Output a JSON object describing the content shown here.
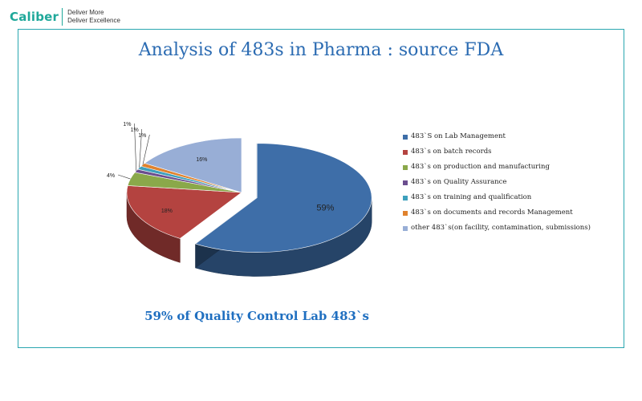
{
  "header": {
    "brand": "Caliber",
    "tagline_1": "Deliver More",
    "tagline_2": "Deliver Excellence"
  },
  "slide": {
    "title": "Analysis of 483s  in Pharma : source FDA",
    "subtitle": "59% of Quality Control Lab 483`s"
  },
  "colors": {
    "brand": "#1fa89a",
    "frame": "#2aa6b0",
    "title": "#2b6bb2"
  },
  "chart_data": {
    "type": "pie",
    "title": "",
    "series": [
      {
        "name": "483`S on Lab Management",
        "value": 59,
        "label": "59%",
        "color": "#3e6ea8"
      },
      {
        "name": "483`s on batch records",
        "value": 18,
        "label": "18%",
        "color": "#b44340"
      },
      {
        "name": "483`s on production and manufacturing",
        "value": 4,
        "label": "4%",
        "color": "#8aa84a"
      },
      {
        "name": "483`s on Quality Assurance",
        "value": 1,
        "label": "1%",
        "color": "#6b4e8f"
      },
      {
        "name": "483`s on training and qualification",
        "value": 1,
        "label": "1%",
        "color": "#3ea0bd"
      },
      {
        "name": "483`s on documents and records Management",
        "value": 1,
        "label": "1%",
        "color": "#e0822d"
      },
      {
        "name": "other 483`s(on facility, contamination, submissions)",
        "value": 16,
        "label": "16%",
        "color": "#98aed6"
      }
    ],
    "legend_position": "right",
    "exploded_slice": "483`S on Lab Management"
  }
}
